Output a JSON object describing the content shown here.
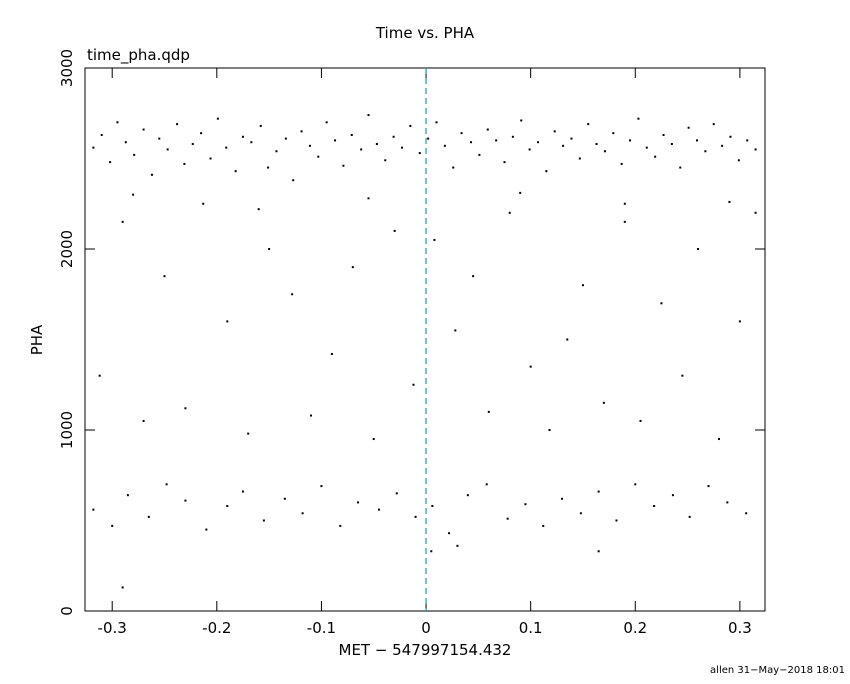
{
  "chart_data": {
    "type": "scatter",
    "title": "Time vs. PHA",
    "subtitle": "time_pha.qdp",
    "xlabel": "MET − 547997154.432",
    "ylabel": "PHA",
    "footer": "allen 31−May−2018 18:01",
    "xlim": [
      -0.326,
      0.324
    ],
    "ylim": [
      0,
      3000
    ],
    "xticks": [
      -0.3,
      -0.2,
      -0.1,
      0,
      0.1,
      0.2,
      0.3
    ],
    "yticks": [
      0,
      1000,
      2000,
      3000
    ],
    "color": "#000000",
    "vline": {
      "x": 0,
      "color": "#1a9bb0"
    },
    "x": [
      -0.318,
      -0.31,
      -0.302,
      -0.295,
      -0.287,
      -0.279,
      -0.27,
      -0.262,
      -0.255,
      -0.247,
      -0.238,
      -0.231,
      -0.223,
      -0.215,
      -0.206,
      -0.199,
      -0.191,
      -0.182,
      -0.175,
      -0.167,
      -0.158,
      -0.151,
      -0.143,
      -0.134,
      -0.127,
      -0.119,
      -0.111,
      -0.103,
      -0.095,
      -0.087,
      -0.079,
      -0.071,
      -0.062,
      -0.055,
      -0.047,
      -0.039,
      -0.031,
      -0.023,
      -0.015,
      -0.006,
      0.002,
      0.01,
      0.018,
      0.026,
      0.034,
      0.043,
      0.051,
      0.059,
      0.067,
      0.075,
      0.083,
      0.091,
      0.099,
      0.107,
      0.115,
      0.123,
      0.131,
      0.139,
      0.147,
      0.155,
      0.163,
      0.171,
      0.179,
      0.187,
      0.195,
      0.203,
      0.211,
      0.219,
      0.227,
      0.235,
      0.243,
      0.251,
      0.259,
      0.267,
      0.275,
      0.283,
      0.291,
      0.299,
      0.307,
      0.315,
      -0.312,
      -0.29,
      -0.27,
      -0.25,
      -0.23,
      -0.213,
      -0.19,
      -0.17,
      -0.15,
      -0.128,
      -0.11,
      -0.09,
      -0.07,
      -0.05,
      -0.03,
      -0.012,
      0.008,
      0.028,
      0.045,
      0.06,
      0.08,
      0.1,
      0.118,
      0.135,
      0.15,
      0.17,
      0.19,
      0.205,
      0.225,
      0.245,
      0.26,
      0.28,
      0.3,
      0.315,
      -0.28,
      -0.16,
      -0.055,
      0.09,
      0.19,
      0.29,
      -0.318,
      -0.3,
      -0.285,
      -0.265,
      -0.248,
      -0.23,
      -0.21,
      -0.19,
      -0.175,
      -0.155,
      -0.135,
      -0.118,
      -0.1,
      -0.082,
      -0.065,
      -0.045,
      -0.028,
      -0.01,
      0.006,
      0.022,
      0.04,
      0.058,
      0.078,
      0.095,
      0.112,
      0.13,
      0.148,
      0.165,
      0.182,
      0.2,
      0.218,
      0.236,
      0.252,
      0.27,
      0.288,
      0.306,
      -0.29,
      0.005,
      0.03,
      0.165
    ],
    "y": [
      2560,
      2630,
      2480,
      2700,
      2590,
      2520,
      2660,
      2410,
      2610,
      2550,
      2690,
      2470,
      2580,
      2640,
      2500,
      2720,
      2560,
      2430,
      2620,
      2590,
      2680,
      2450,
      2540,
      2610,
      2380,
      2650,
      2570,
      2510,
      2700,
      2600,
      2460,
      2630,
      2550,
      2740,
      2580,
      2490,
      2620,
      2560,
      2680,
      2530,
      2610,
      2700,
      2570,
      2450,
      2640,
      2590,
      2520,
      2660,
      2600,
      2480,
      2620,
      2710,
      2550,
      2590,
      2430,
      2650,
      2570,
      2610,
      2500,
      2690,
      2580,
      2540,
      2640,
      2470,
      2600,
      2720,
      2560,
      2510,
      2630,
      2580,
      2450,
      2670,
      2600,
      2540,
      2690,
      2570,
      2620,
      2490,
      2600,
      2550,
      1300,
      2150,
      1050,
      1850,
      1120,
      2250,
      1600,
      980,
      2000,
      1750,
      1080,
      1420,
      1900,
      950,
      2100,
      1250,
      2050,
      1550,
      1850,
      1100,
      2200,
      1350,
      1000,
      1500,
      1800,
      1150,
      2150,
      1050,
      1700,
      1300,
      2000,
      950,
      1600,
      2200,
      2300,
      2220,
      2280,
      2310,
      2250,
      2260,
      560,
      470,
      640,
      520,
      700,
      610,
      450,
      580,
      660,
      500,
      620,
      540,
      690,
      470,
      600,
      560,
      650,
      520,
      580,
      430,
      640,
      700,
      510,
      590,
      470,
      620,
      540,
      660,
      500,
      700,
      580,
      640,
      520,
      690,
      600,
      540,
      130,
      330,
      360,
      330
    ]
  }
}
